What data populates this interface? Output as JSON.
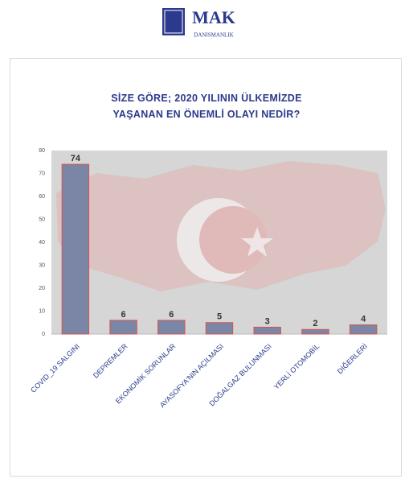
{
  "logo": {
    "name": "MAK",
    "subtitle": "DANISMANLIK"
  },
  "chart_data": {
    "type": "bar",
    "title": "SİZE GÖRE; 2020 YILININ ÜLKEMİZDE YAŞANAN EN ÖNEMLİ OLAYI NEDİR?",
    "categories": [
      "COVID_19 SALGINI",
      "DEPREMLER",
      "EKONOMİK SORUNLAR",
      "AYASOFYA'NIN AÇILMASI",
      "DOĞALGAZ BULUNMASI",
      "YERLİ OTOMOBİL",
      "DİĞERLERİ"
    ],
    "values": [
      74,
      6,
      6,
      5,
      3,
      2,
      4
    ],
    "color": "#7b85a6",
    "ylim": [
      0,
      80
    ],
    "yticks": [
      0,
      10,
      20,
      30,
      40,
      50,
      60,
      70,
      80
    ],
    "grid": false
  }
}
